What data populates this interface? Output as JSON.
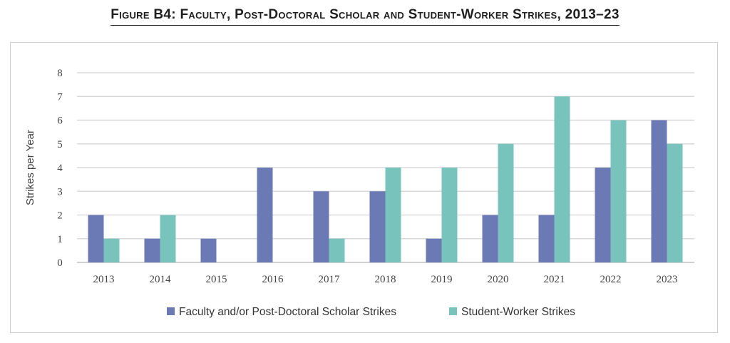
{
  "figure_title": "Figure B4: Faculty, Post-Doctoral Scholar and Student-Worker Strikes, 2013–23",
  "colors": {
    "faculty": "#6b79b5",
    "student": "#79c3bd",
    "grid": "#d9d9d9",
    "axis": "#bfbfbf"
  },
  "chart_data": {
    "type": "bar",
    "title": "Figure B4: Faculty, Post-Doctoral Scholar and Student-Worker Strikes, 2013–23",
    "xlabel": "",
    "ylabel": "Strikes per Year",
    "ylim": [
      0,
      8
    ],
    "yticks": [
      0,
      1,
      2,
      3,
      4,
      5,
      6,
      7,
      8
    ],
    "grid": true,
    "legend_position": "bottom",
    "categories": [
      "2013",
      "2014",
      "2015",
      "2016",
      "2017",
      "2018",
      "2019",
      "2020",
      "2021",
      "2022",
      "2023"
    ],
    "series": [
      {
        "name": "Faculty and/or Post-Doctoral Scholar Strikes",
        "color": "#6b79b5",
        "values": [
          2,
          1,
          1,
          4,
          3,
          3,
          1,
          2,
          2,
          4,
          6
        ]
      },
      {
        "name": "Student-Worker Strikes",
        "color": "#79c3bd",
        "values": [
          1,
          2,
          0,
          0,
          1,
          4,
          4,
          5,
          7,
          6,
          5
        ]
      }
    ]
  }
}
